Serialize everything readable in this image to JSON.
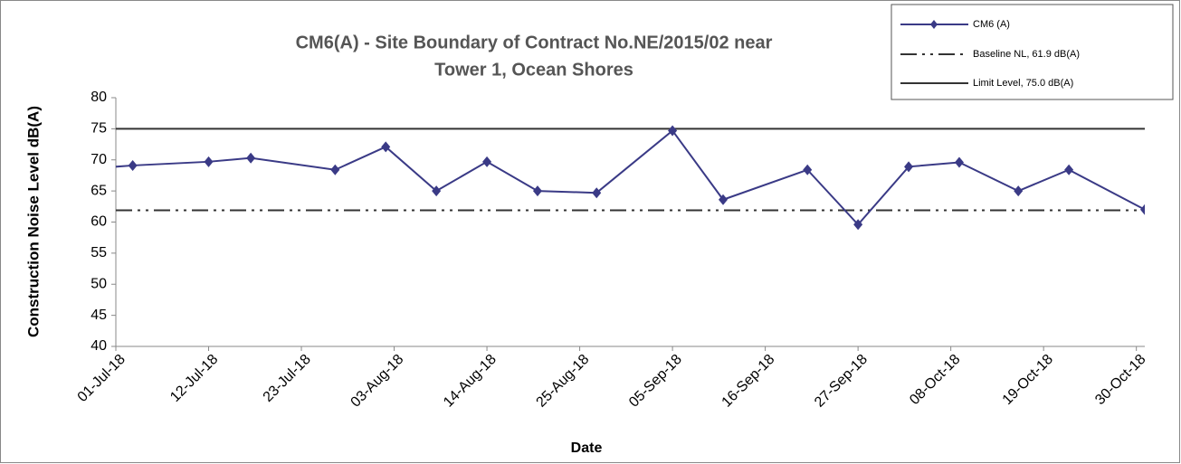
{
  "chart_data": {
    "type": "line",
    "title": [
      "CM6(A) - Site Boundary of Contract No.NE/2015/02 near",
      "Tower 1, Ocean Shores"
    ],
    "x_label": "Date",
    "y_label": "Construction Noise Level  dB(A)",
    "x": [
      "2018-06-30",
      "2018-07-03",
      "2018-07-12",
      "2018-07-17",
      "2018-07-27",
      "2018-08-02",
      "2018-08-08",
      "2018-08-14",
      "2018-08-20",
      "2018-08-27",
      "2018-09-05",
      "2018-09-11",
      "2018-09-21",
      "2018-09-27",
      "2018-10-03",
      "2018-10-09",
      "2018-10-16",
      "2018-10-22",
      "2018-10-31"
    ],
    "series": [
      {
        "name": "CM6 (A)",
        "color": "#3a3a86",
        "values": [
          68.8,
          69.1,
          69.7,
          70.3,
          68.4,
          72.1,
          65.0,
          69.7,
          65.0,
          64.7,
          74.7,
          63.6,
          68.4,
          59.6,
          68.9,
          69.6,
          65.0,
          68.4,
          62.0
        ]
      }
    ],
    "reference_lines": [
      {
        "name": "Baseline NL, 61.9 dB(A)",
        "value": 61.9,
        "color": "#333333",
        "style": "dashdot"
      },
      {
        "name": "Limit Level,  75.0 dB(A)",
        "value": 75.0,
        "color": "#333333",
        "style": "solid"
      }
    ],
    "xlim": [
      "2018-07-01",
      "2018-10-31"
    ],
    "xticks": [
      {
        "value": "2018-07-01",
        "label": "01-Jul-18"
      },
      {
        "value": "2018-07-12",
        "label": "12-Jul-18"
      },
      {
        "value": "2018-07-23",
        "label": "23-Jul-18"
      },
      {
        "value": "2018-08-03",
        "label": "03-Aug-18"
      },
      {
        "value": "2018-08-14",
        "label": "14-Aug-18"
      },
      {
        "value": "2018-08-25",
        "label": "25-Aug-18"
      },
      {
        "value": "2018-09-05",
        "label": "05-Sep-18"
      },
      {
        "value": "2018-09-16",
        "label": "16-Sep-18"
      },
      {
        "value": "2018-09-27",
        "label": "27-Sep-18"
      },
      {
        "value": "2018-10-08",
        "label": "08-Oct-18"
      },
      {
        "value": "2018-10-19",
        "label": "19-Oct-18"
      },
      {
        "value": "2018-10-30",
        "label": "30-Oct-18"
      }
    ],
    "ylim": [
      40,
      80
    ],
    "yticks": [
      40,
      45,
      50,
      55,
      60,
      65,
      70,
      75,
      80
    ]
  }
}
